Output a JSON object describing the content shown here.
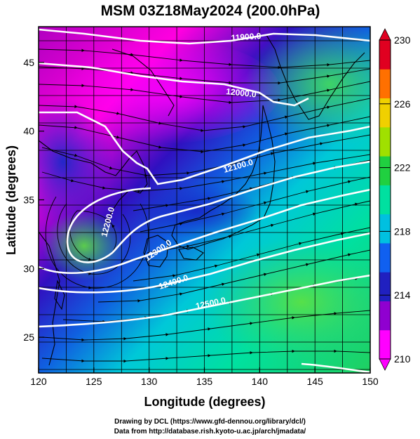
{
  "title": "MSM 03Z18May2024 (200.0hPa)",
  "axes": {
    "xlabel": "Longitude (degrees)",
    "ylabel": "Latitude  (degrees)",
    "xrange": [
      120,
      150
    ],
    "yrange": [
      22.4,
      47.6
    ],
    "xticks": [
      "120",
      "125",
      "130",
      "135",
      "140",
      "145",
      "150"
    ],
    "xtick_values": [
      120,
      125,
      130,
      135,
      140,
      145,
      150
    ],
    "yticks": [
      "25",
      "30",
      "35",
      "40",
      "45"
    ],
    "ytick_values": [
      25,
      30,
      35,
      40,
      45
    ],
    "grid": true
  },
  "colorbar": {
    "min": 210,
    "max": 230,
    "labels": [
      "230",
      "226",
      "222",
      "218",
      "214",
      "210"
    ],
    "label_values": [
      230,
      226,
      222,
      218,
      214,
      210
    ],
    "colors": [
      "#ff00ff",
      "#9000d0",
      "#2020c0",
      "#1060f0",
      "#00c0e0",
      "#00e0a0",
      "#20d040",
      "#a0e000",
      "#f0d000",
      "#ff7000",
      "#e00020"
    ]
  },
  "contours": [
    {
      "label": "11900.0"
    },
    {
      "label": "12000.0"
    },
    {
      "label": "12100.0"
    },
    {
      "label": "12200.0"
    },
    {
      "label": "12300.0"
    },
    {
      "label": "12400.0"
    },
    {
      "label": "12500.0"
    }
  ],
  "credits": {
    "line1": "Drawing by DCL (https://www.gfd-dennou.org/library/dcl/)",
    "line2": "Data from http://database.rish.kyoto-u.ac.jp/arch/jmadata/"
  }
}
